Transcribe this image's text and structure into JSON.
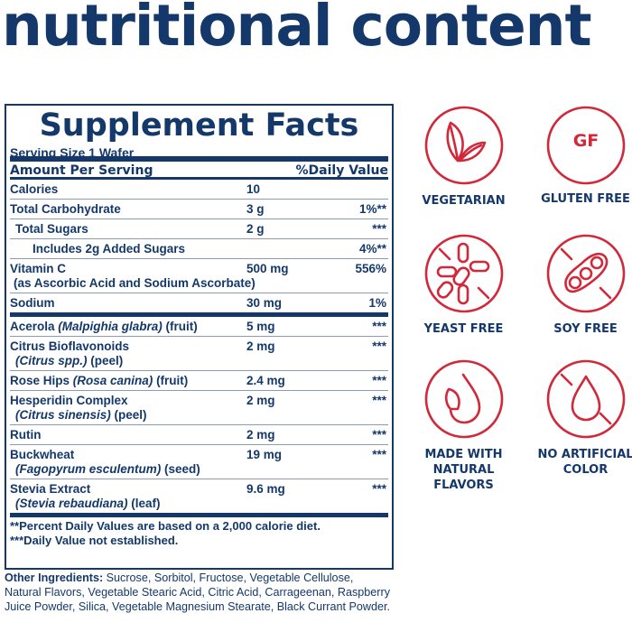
{
  "title": "nutritional content",
  "facts": {
    "title": "Supplement Facts",
    "serving_size": "Serving Size 1 Wafer",
    "header_amount": "Amount Per Serving",
    "header_dv": "%Daily Value",
    "rows": [
      {
        "name": "Calories",
        "amount": "10",
        "dv": ""
      },
      {
        "name": "Total Carbohydrate",
        "amount": "3 g",
        "dv": "1%**"
      },
      {
        "name": "Total Sugars",
        "amount": "2 g",
        "dv": "***"
      },
      {
        "name": "Includes 2g Added Sugars",
        "amount": "",
        "dv": "4%**"
      },
      {
        "name": "Vitamin C",
        "sub": "(as Ascorbic Acid and Sodium Ascorbate)",
        "amount": "500 mg",
        "dv": "556%"
      },
      {
        "name": "Sodium",
        "amount": "30 mg",
        "dv": "1%"
      }
    ],
    "botanicals": [
      {
        "name": "Acerola ",
        "latin": "(Malpighia glabra)",
        "part": " (fruit)",
        "amount": "5 mg",
        "dv": "***"
      },
      {
        "name": "Citrus Bioflavonoids",
        "latin": "(Citrus spp.)",
        "part": " (peel)",
        "amount": "2 mg",
        "dv": "***"
      },
      {
        "name": "Rose Hips ",
        "latin": "(Rosa canina)",
        "part": " (fruit)",
        "amount": "2.4 mg",
        "dv": "***"
      },
      {
        "name": "Hesperidin Complex",
        "latin": "(Citrus sinensis)",
        "part": " (peel)",
        "amount": "2 mg",
        "dv": "***"
      },
      {
        "name": "Rutin",
        "amount": "2 mg",
        "dv": "***"
      },
      {
        "name": "Buckwheat",
        "latin": "(Fagopyrum esculentum)",
        "part": " (seed)",
        "amount": "19 mg",
        "dv": "***"
      },
      {
        "name": "Stevia Extract",
        "latin": "(Stevia rebaudiana)",
        "part": " (leaf)",
        "amount": "9.6 mg",
        "dv": "***"
      }
    ],
    "footnote1": "**Percent Daily Values are based on a 2,000 calorie diet.",
    "footnote2": "***Daily Value not established."
  },
  "other": {
    "label": "Other Ingredients:",
    "text": " Sucrose, Sorbitol, Fructose, Vegetable Cellulose, Natural Flavors, Vegetable Stearic Acid, Citric Acid, Carrageenan, Raspberry Juice Powder, Silica, Vegetable Magnesium Stearate, Black Currant Powder."
  },
  "badges": [
    {
      "icon": "leaf-icon",
      "label": "VEGETARIAN"
    },
    {
      "icon": "gf-icon",
      "label": "GLUTEN FREE",
      "glyph": "GF"
    },
    {
      "icon": "yeast-free-icon",
      "label": "YEAST FREE"
    },
    {
      "icon": "soy-free-icon",
      "label": "SOY FREE"
    },
    {
      "icon": "natural-flavor-drop-icon",
      "label": "MADE WITH NATURAL FLAVORS"
    },
    {
      "icon": "no-color-drop-icon",
      "label": "NO ARTIFICIAL COLOR"
    }
  ],
  "colors": {
    "navy": "#14386a",
    "red": "#d1283a"
  }
}
